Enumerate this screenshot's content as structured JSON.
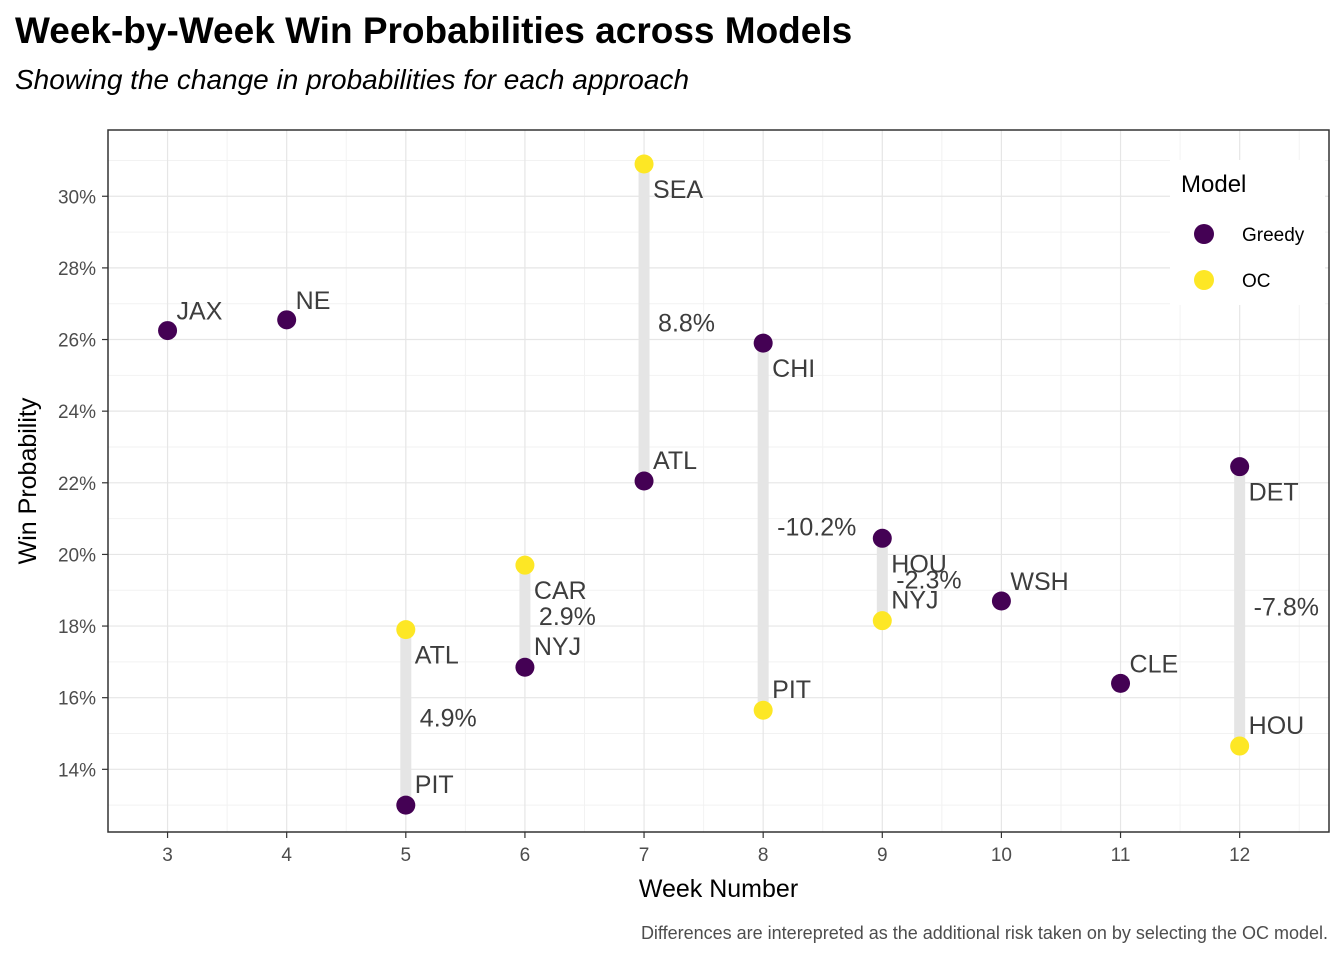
{
  "chart_data": {
    "type": "scatter",
    "title": "Week-by-Week Win Probabilities across Models",
    "subtitle": "Showing the change in probabilities for each approach",
    "caption": "Differences are interepreted as the additional risk taken on by selecting the OC model.",
    "xlabel": "Week Number",
    "ylabel": "Win Probability",
    "xlim": [
      2.5,
      12.75
    ],
    "ylim": [
      12.25,
      31.85
    ],
    "x_ticks": [
      3,
      4,
      5,
      6,
      7,
      8,
      9,
      10,
      11,
      12
    ],
    "y_ticks": [
      14,
      16,
      18,
      20,
      22,
      24,
      26,
      28,
      30
    ],
    "y_tick_labels": [
      "14%",
      "16%",
      "18%",
      "20%",
      "22%",
      "24%",
      "26%",
      "28%",
      "30%"
    ],
    "grid": true,
    "legend": {
      "title": "Model",
      "placement": "top-right",
      "entries": [
        {
          "name": "Greedy",
          "color": "#440154"
        },
        {
          "name": "OC",
          "color": "#FDE725"
        }
      ]
    },
    "series": [
      {
        "name": "Greedy",
        "color": "#440154",
        "points": [
          {
            "x": 3,
            "y": 26.25,
            "label": "JAX"
          },
          {
            "x": 4,
            "y": 26.55,
            "label": "NE"
          },
          {
            "x": 5,
            "y": 13.0,
            "label": "PIT"
          },
          {
            "x": 6,
            "y": 16.85,
            "label": "NYJ"
          },
          {
            "x": 7,
            "y": 22.05,
            "label": "ATL"
          },
          {
            "x": 8,
            "y": 25.9,
            "label": "CHI"
          },
          {
            "x": 9,
            "y": 20.45,
            "label": "HOU"
          },
          {
            "x": 10,
            "y": 18.7,
            "label": "WSH"
          },
          {
            "x": 11,
            "y": 16.4,
            "label": "CLE"
          },
          {
            "x": 12,
            "y": 22.45,
            "label": "DET"
          }
        ]
      },
      {
        "name": "OC",
        "color": "#FDE725",
        "points": [
          {
            "x": 5,
            "y": 17.9,
            "label": "ATL"
          },
          {
            "x": 6,
            "y": 19.7,
            "label": "CAR"
          },
          {
            "x": 7,
            "y": 30.9,
            "label": "SEA"
          },
          {
            "x": 8,
            "y": 15.65,
            "label": "PIT"
          },
          {
            "x": 9,
            "y": 18.15,
            "label": "NYJ"
          },
          {
            "x": 12,
            "y": 14.65,
            "label": "HOU"
          }
        ]
      }
    ],
    "differences": [
      {
        "x": 5,
        "label": "4.9%"
      },
      {
        "x": 6,
        "label": "2.9%"
      },
      {
        "x": 7,
        "label": "8.8%"
      },
      {
        "x": 8,
        "label": "-10.2%"
      },
      {
        "x": 9,
        "label": "-2.3%"
      },
      {
        "x": 12,
        "label": "-7.8%"
      }
    ]
  }
}
